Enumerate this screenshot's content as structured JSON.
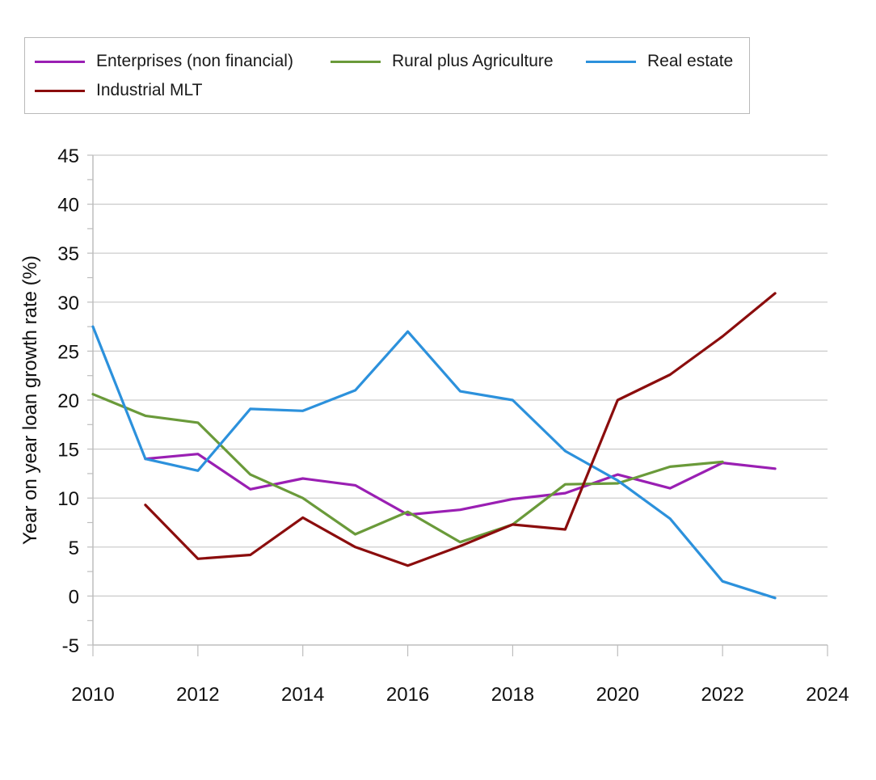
{
  "chart_data": {
    "type": "line",
    "title": "",
    "xlabel": "",
    "ylabel": "Year on year loan growth rate (%)",
    "xlim": [
      2010,
      2024
    ],
    "ylim": [
      -5,
      45
    ],
    "x_ticks": [
      2010,
      2012,
      2014,
      2016,
      2018,
      2020,
      2022,
      2024
    ],
    "y_ticks": [
      -5,
      0,
      5,
      10,
      15,
      20,
      25,
      30,
      35,
      40,
      45
    ],
    "grid": "horizontal",
    "legend_position": "top",
    "series": [
      {
        "name": "Enterprises (non financial)",
        "color": "#9a1fb3",
        "x": [
          2011,
          2012,
          2013,
          2014,
          2015,
          2016,
          2017,
          2018,
          2019,
          2020,
          2021,
          2022,
          2023
        ],
        "values": [
          14.0,
          14.5,
          10.9,
          12.0,
          11.3,
          8.3,
          8.8,
          9.9,
          10.5,
          12.4,
          11.0,
          13.6,
          13.0
        ]
      },
      {
        "name": "Rural plus Agriculture",
        "color": "#6a9a3a",
        "x": [
          2010,
          2011,
          2012,
          2013,
          2014,
          2015,
          2016,
          2017,
          2018,
          2019,
          2020,
          2021,
          2022
        ],
        "values": [
          20.6,
          18.4,
          17.7,
          12.4,
          10.0,
          6.3,
          8.6,
          5.5,
          7.3,
          11.4,
          11.5,
          13.2,
          13.7
        ]
      },
      {
        "name": "Real estate",
        "color": "#2c91dc",
        "x": [
          2010,
          2011,
          2012,
          2013,
          2014,
          2015,
          2016,
          2017,
          2018,
          2019,
          2020,
          2021,
          2022,
          2023
        ],
        "values": [
          27.5,
          14.0,
          12.8,
          19.1,
          18.9,
          21.0,
          27.0,
          20.9,
          20.0,
          14.8,
          11.8,
          7.9,
          1.5,
          -0.2
        ]
      },
      {
        "name": "Industrial MLT",
        "color": "#8b0d0d",
        "x": [
          2011,
          2012,
          2013,
          2014,
          2015,
          2016,
          2017,
          2018,
          2019,
          2020,
          2021,
          2022,
          2023
        ],
        "values": [
          9.3,
          3.8,
          4.2,
          8.0,
          5.0,
          3.1,
          5.1,
          7.3,
          6.8,
          20.0,
          22.6,
          26.5,
          30.9
        ]
      }
    ]
  }
}
